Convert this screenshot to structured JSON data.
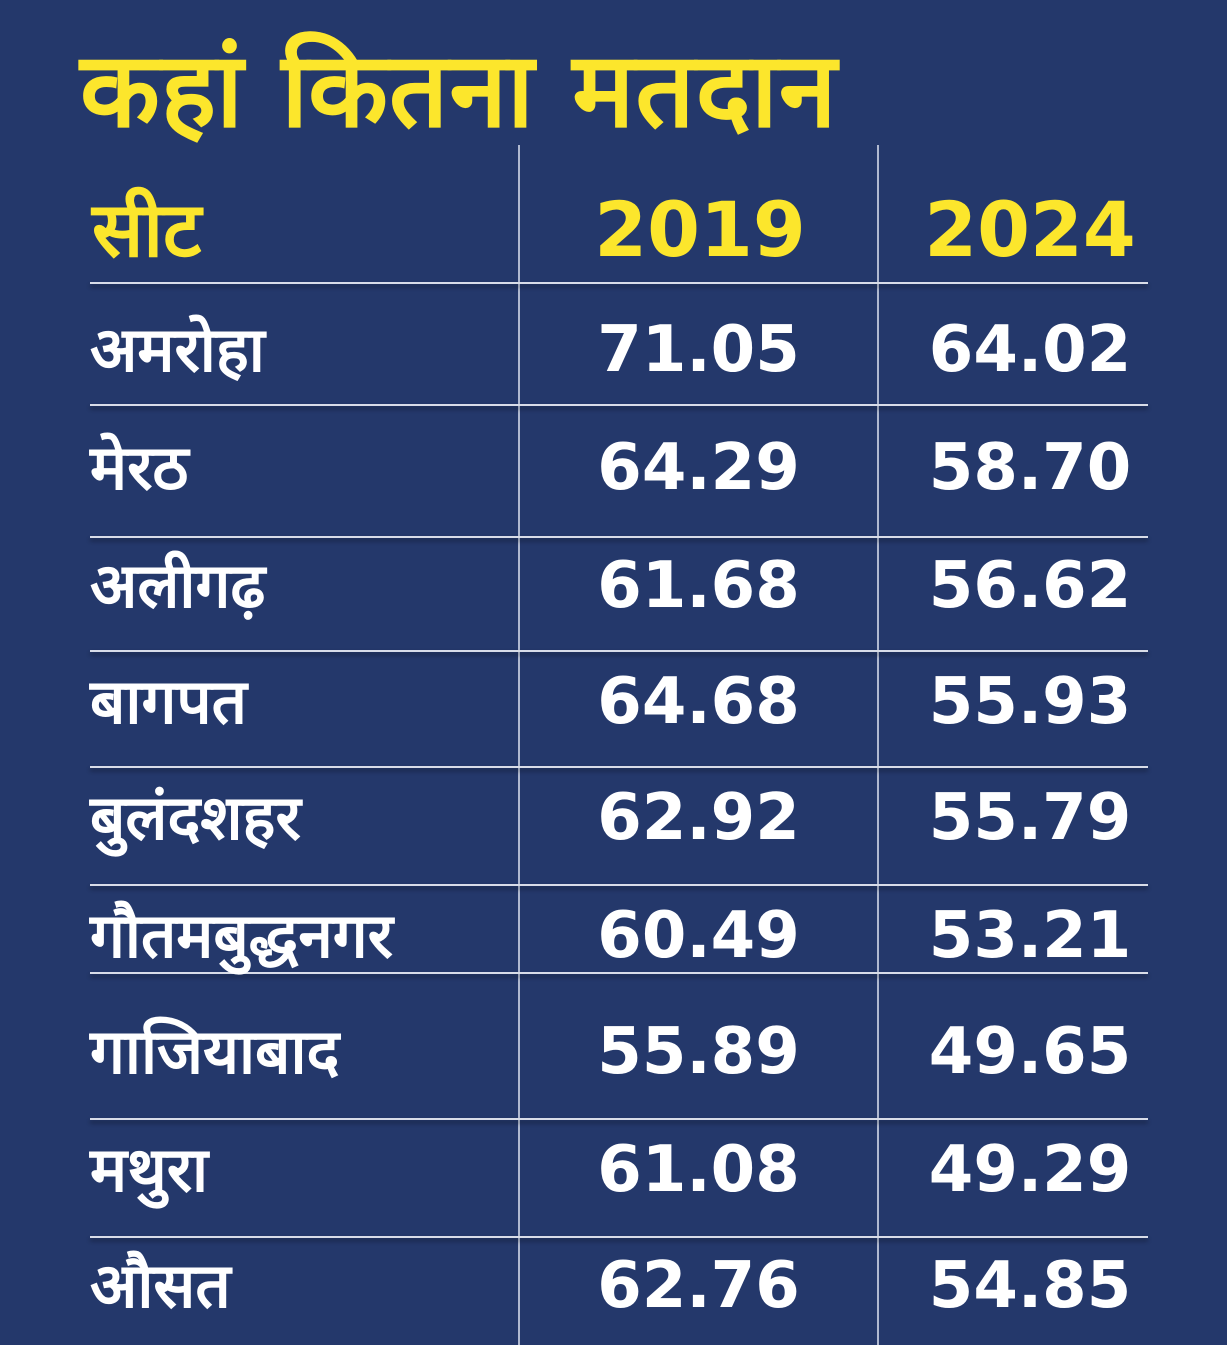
{
  "chart_data": {
    "type": "table",
    "title": "कहां कितना मतदान",
    "columns": [
      "सीट",
      "2019",
      "2024"
    ],
    "rows": [
      {
        "seat": "अमरोहा",
        "y2019": "71.05",
        "y2024": "64.02"
      },
      {
        "seat": "मेरठ",
        "y2019": "64.29",
        "y2024": "58.70"
      },
      {
        "seat": "अलीगढ़",
        "y2019": "61.68",
        "y2024": "56.62"
      },
      {
        "seat": "बागपत",
        "y2019": "64.68",
        "y2024": "55.93"
      },
      {
        "seat": "बुलंदशहर",
        "y2019": "62.92",
        "y2024": "55.79"
      },
      {
        "seat": "गौतमबुद्धनगर",
        "y2019": "60.49",
        "y2024": "53.21"
      },
      {
        "seat": "गाजियाबाद",
        "y2019": "55.89",
        "y2024": "49.65"
      },
      {
        "seat": "मथुरा",
        "y2019": "61.08",
        "y2024": "49.29"
      },
      {
        "seat": "औसत",
        "y2019": "62.76",
        "y2024": "54.85"
      }
    ]
  },
  "colors": {
    "background": "#24386b",
    "accent": "#fce62c",
    "text": "#ffffff",
    "rule": "#d8dce8"
  }
}
